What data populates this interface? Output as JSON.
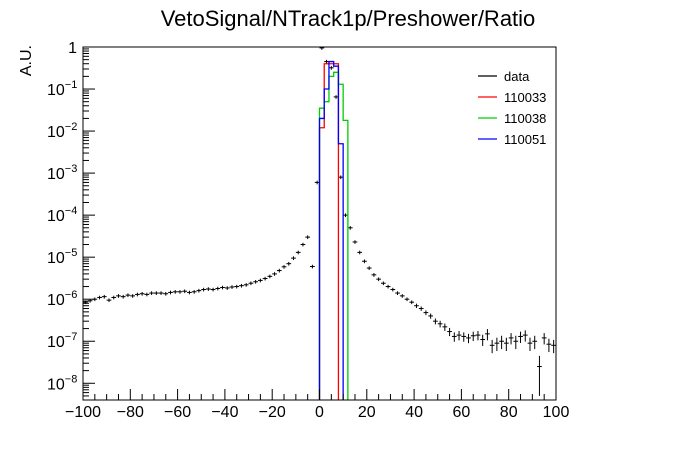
{
  "chart_data": {
    "type": "histogram",
    "title": "VetoSignal/NTrack1p/Preshower/Ratio",
    "xlabel": "",
    "ylabel": "A.U.",
    "xlim": [
      -100,
      100
    ],
    "ylim": [
      4e-09,
      1.0
    ],
    "yscale": "log",
    "grid": false,
    "legend_placement": "top-right",
    "x_ticks": [
      -100,
      -80,
      -60,
      -40,
      -20,
      0,
      20,
      40,
      60,
      80,
      100
    ],
    "x_tick_labels": [
      "−100",
      "−80",
      "−60",
      "−40",
      "−20",
      "0",
      "20",
      "40",
      "60",
      "80",
      "100"
    ],
    "y_ticks": [
      {
        "value": 1,
        "base": "1",
        "exp": ""
      },
      {
        "value": 0.1,
        "base": "10",
        "exp": "−1"
      },
      {
        "value": 0.01,
        "base": "10",
        "exp": "−2"
      },
      {
        "value": 0.001,
        "base": "10",
        "exp": "−3"
      },
      {
        "value": 0.0001,
        "base": "10",
        "exp": "−4"
      },
      {
        "value": 1e-05,
        "base": "10",
        "exp": "−5"
      },
      {
        "value": 1e-06,
        "base": "10",
        "exp": "−6"
      },
      {
        "value": 1e-07,
        "base": "10",
        "exp": "−7"
      },
      {
        "value": 1e-08,
        "base": "10",
        "exp": "−8"
      }
    ],
    "series": [
      {
        "name": "data",
        "style": "errorbar",
        "color": "#000000",
        "bin_width": 2,
        "x": [
          -99,
          -97,
          -95,
          -93,
          -91,
          -89,
          -87,
          -85,
          -83,
          -81,
          -79,
          -77,
          -75,
          -73,
          -71,
          -69,
          -67,
          -65,
          -63,
          -61,
          -59,
          -57,
          -55,
          -53,
          -51,
          -49,
          -47,
          -45,
          -43,
          -41,
          -39,
          -37,
          -35,
          -33,
          -31,
          -29,
          -27,
          -25,
          -23,
          -21,
          -19,
          -17,
          -15,
          -13,
          -11,
          -9,
          -7,
          -5,
          -3,
          -1,
          1,
          3,
          5,
          7,
          9,
          11,
          13,
          15,
          17,
          19,
          21,
          23,
          25,
          27,
          29,
          31,
          33,
          35,
          37,
          39,
          41,
          43,
          45,
          47,
          49,
          51,
          53,
          55,
          57,
          59,
          61,
          63,
          65,
          67,
          69,
          71,
          73,
          75,
          77,
          79,
          81,
          83,
          85,
          87,
          89,
          91,
          93,
          95,
          97,
          99
        ],
        "y": [
          8.5e-07,
          9.2e-07,
          1e-06,
          1.1e-06,
          1.15e-06,
          9.5e-07,
          1.1e-06,
          1.2e-06,
          1.15e-06,
          1.25e-06,
          1.2e-06,
          1.3e-06,
          1.35e-06,
          1.3e-06,
          1.4e-06,
          1.4e-06,
          1.4e-06,
          1.35e-06,
          1.45e-06,
          1.5e-06,
          1.5e-06,
          1.55e-06,
          1.45e-06,
          1.5e-06,
          1.6e-06,
          1.7e-06,
          1.75e-06,
          1.7e-06,
          1.8e-06,
          1.9e-06,
          1.85e-06,
          1.95e-06,
          2e-06,
          2.1e-06,
          2.2e-06,
          2.4e-06,
          2.6e-06,
          2.8e-06,
          3.1e-06,
          3.5e-06,
          4e-06,
          4.8e-06,
          5.9e-06,
          7e-06,
          9.5e-06,
          1.3e-05,
          2e-05,
          3e-05,
          6e-06,
          0.0006,
          0.95,
          0.45,
          0.32,
          0.065,
          0.0008,
          0.0001,
          5e-05,
          2.3e-05,
          1.3e-05,
          8e-06,
          5.5e-06,
          3.8e-06,
          3e-06,
          2.4e-06,
          2e-06,
          1.7e-06,
          1.4e-06,
          1.2e-06,
          1e-06,
          8.5e-07,
          7e-07,
          6e-07,
          4.8e-07,
          4e-07,
          3e-07,
          2.6e-07,
          2.2e-07,
          1.7e-07,
          1.3e-07,
          1.4e-07,
          1.3e-07,
          1.2e-07,
          1.35e-07,
          1.4e-07,
          1.1e-07,
          1.5e-07,
          8e-08,
          9e-08,
          1e-07,
          9e-08,
          1.2e-07,
          1e-07,
          1.3e-07,
          1.4e-07,
          9e-08,
          1e-07,
          2.5e-08,
          1.2e-07,
          8.5e-08,
          8e-08
        ],
        "yerr_rel": [
          0.1,
          0.1,
          0.1,
          0.1,
          0.1,
          0.1,
          0.1,
          0.1,
          0.1,
          0.1,
          0.1,
          0.1,
          0.1,
          0.1,
          0.1,
          0.1,
          0.1,
          0.1,
          0.1,
          0.1,
          0.1,
          0.1,
          0.1,
          0.1,
          0.1,
          0.1,
          0.1,
          0.1,
          0.1,
          0.1,
          0.1,
          0.1,
          0.1,
          0.1,
          0.1,
          0.1,
          0.1,
          0.1,
          0.1,
          0.1,
          0.1,
          0.1,
          0.1,
          0.1,
          0.1,
          0.1,
          0.1,
          0.1,
          0.1,
          0.1,
          0.1,
          0.1,
          0.1,
          0.1,
          0.1,
          0.1,
          0.1,
          0.1,
          0.1,
          0.1,
          0.1,
          0.1,
          0.1,
          0.1,
          0.1,
          0.1,
          0.1,
          0.1,
          0.1,
          0.1,
          0.12,
          0.12,
          0.13,
          0.14,
          0.16,
          0.18,
          0.2,
          0.22,
          0.25,
          0.25,
          0.25,
          0.25,
          0.25,
          0.25,
          0.3,
          0.3,
          0.35,
          0.35,
          0.35,
          0.35,
          0.3,
          0.35,
          0.3,
          0.3,
          0.35,
          0.35,
          0.8,
          0.3,
          0.35,
          0.35
        ]
      },
      {
        "name": "110033",
        "style": "step",
        "color": "#ff0000",
        "bin_edges": [
          0,
          2,
          4,
          6,
          8
        ],
        "y": [
          0.012,
          0.4,
          0.4,
          0.4
        ]
      },
      {
        "name": "110038",
        "style": "step",
        "color": "#00cc00",
        "bin_edges": [
          0,
          2,
          4,
          6,
          8,
          10,
          12
        ],
        "y": [
          0.035,
          0.05,
          0.2,
          0.25,
          0.13,
          0.018
        ]
      },
      {
        "name": "110051",
        "style": "step",
        "color": "#0000ff",
        "bin_edges": [
          0,
          2,
          4,
          6,
          8,
          10
        ],
        "y": [
          0.02,
          0.1,
          0.45,
          0.35,
          0.005
        ]
      }
    ]
  }
}
